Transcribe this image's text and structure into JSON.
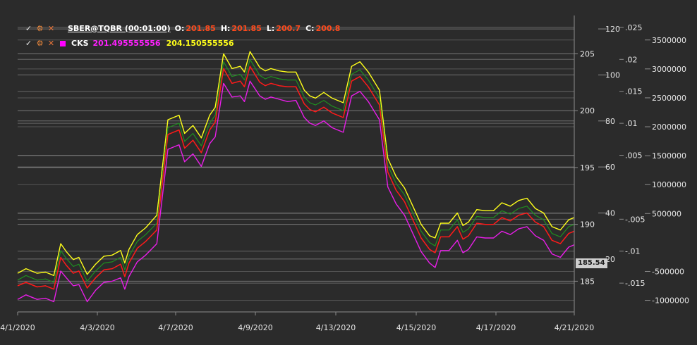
{
  "legend": {
    "instrument": "SBER@TQBR (00:01:00)",
    "o_label": "O:",
    "o_value": "201.85",
    "h_label": "H:",
    "h_value": "201.85",
    "l_label": "L:",
    "l_value": "200.7",
    "c_label": "C:",
    "c_value": "200.8",
    "indicator_name": "CKS",
    "indicator_value_1": "201.495555556",
    "indicator_value_2": "204.150555556"
  },
  "price_tag": "185.54",
  "colors": {
    "background": "#2b2b2b",
    "grid": "#8c8c8c",
    "series_price": "#ff1a1a",
    "series_low": "#e81ee8",
    "series_high": "#ffff1a",
    "series_mid": "#1f8f1f"
  },
  "chart_data": {
    "type": "line",
    "title": "",
    "x_ticks": [
      "4/1/2020",
      "4/3/2020",
      "4/7/2020",
      "4/9/2020",
      "4/13/2020",
      "4/15/2020",
      "4/17/2020",
      "4/21/2020"
    ],
    "price_axis": {
      "ticks": [
        "185",
        "190",
        "195",
        "200",
        "205"
      ],
      "range": [
        182.3,
        208
      ]
    },
    "axis_2": {
      "ticks": [
        "20",
        "40",
        "60",
        "80",
        "100",
        "120"
      ],
      "range": [
        -3,
        124
      ]
    },
    "axis_3": {
      "ticks": [
        "-.015",
        "-.01",
        "-.005",
        ".005",
        ".01",
        ".015",
        ".02",
        ".025"
      ],
      "range": [
        -0.0195,
        0.0262
      ]
    },
    "axis_4": {
      "ticks": [
        "-1000000",
        "-500000",
        "500000",
        "1000000",
        "1500000",
        "2000000",
        "2500000",
        "3000000",
        "3500000"
      ],
      "range": [
        -1200000,
        3850000
      ]
    },
    "series": [
      {
        "name": "CKS",
        "x": [
          0,
          0.3,
          0.7,
          1.0,
          1.3,
          1.55,
          1.75,
          2.0,
          2.2,
          2.5,
          2.8,
          3.1,
          3.4,
          3.7,
          3.85,
          4.0,
          4.3,
          4.6,
          5.0,
          5.4,
          5.8,
          6.0,
          6.3,
          6.6,
          6.9,
          7.1,
          7.4,
          7.7,
          8.0,
          8.15,
          8.35,
          8.7,
          8.9,
          9.1,
          9.4,
          9.7,
          10.0,
          10.3,
          10.5,
          10.7,
          11.0,
          11.3,
          11.7,
          12.0,
          12.3,
          12.6,
          13.0,
          13.3,
          13.6,
          13.9,
          14.2,
          14.5,
          14.8,
          15.0,
          15.2,
          15.5,
          15.8,
          16.0,
          16.2,
          16.5,
          16.8,
          17.1,
          17.4,
          17.7,
          18.0,
          18.3,
          18.6,
          18.9,
          19.2,
          19.5,
          19.8,
          20.0
        ],
        "values": [
          184.6,
          184.9,
          184.5,
          184.6,
          184.3,
          187.1,
          186.4,
          185.7,
          185.9,
          184.4,
          185.3,
          186.0,
          186.1,
          186.5,
          185.4,
          186.6,
          187.9,
          188.5,
          189.5,
          197.9,
          198.3,
          196.7,
          197.4,
          196.3,
          198.3,
          199.0,
          203.7,
          202.4,
          202.6,
          202.1,
          203.9,
          202.5,
          202.2,
          202.4,
          202.2,
          202.1,
          202.1,
          200.6,
          200.1,
          199.9,
          200.3,
          199.8,
          199.4,
          202.6,
          203.0,
          202.1,
          200.5,
          194.6,
          193.0,
          192.0,
          190.4,
          188.8,
          187.8,
          187.5,
          188.9,
          188.9,
          189.8,
          188.7,
          189.0,
          190.1,
          190.0,
          190.0,
          190.6,
          190.3,
          190.8,
          191.0,
          190.2,
          189.8,
          188.6,
          188.3,
          189.2,
          189.4
        ]
      },
      {
        "x": [
          0,
          0.3,
          0.7,
          1.0,
          1.3,
          1.55,
          1.75,
          2.0,
          2.2,
          2.5,
          2.8,
          3.1,
          3.4,
          3.7,
          3.85,
          4.0,
          4.3,
          4.6,
          5.0,
          5.4,
          5.8,
          6.0,
          6.3,
          6.6,
          6.9,
          7.1,
          7.4,
          7.7,
          8.0,
          8.15,
          8.35,
          8.7,
          8.9,
          9.1,
          9.4,
          9.7,
          10.0,
          10.3,
          10.5,
          10.7,
          11.0,
          11.3,
          11.7,
          12.0,
          12.3,
          12.6,
          13.0,
          13.3,
          13.6,
          13.9,
          14.2,
          14.5,
          14.8,
          15.0,
          15.2,
          15.5,
          15.8,
          16.0,
          16.2,
          16.5,
          16.8,
          17.1,
          17.4,
          17.7,
          18.0,
          18.3,
          18.6,
          18.9,
          19.2,
          19.5,
          19.8,
          20.0
        ],
        "values": [
          183.4,
          183.8,
          183.4,
          183.5,
          183.2,
          185.9,
          185.3,
          184.6,
          184.7,
          183.2,
          184.2,
          184.9,
          185.0,
          185.3,
          184.3,
          185.4,
          186.7,
          187.3,
          188.3,
          196.6,
          197.0,
          195.5,
          196.2,
          195.1,
          197.1,
          197.7,
          202.4,
          201.2,
          201.3,
          200.8,
          202.6,
          201.3,
          201.0,
          201.2,
          201.0,
          200.8,
          200.9,
          199.4,
          198.9,
          198.7,
          199.1,
          198.5,
          198.1,
          201.3,
          201.7,
          200.8,
          199.2,
          193.3,
          191.8,
          190.8,
          189.2,
          187.6,
          186.6,
          186.2,
          187.7,
          187.7,
          188.6,
          187.5,
          187.8,
          188.9,
          188.8,
          188.8,
          189.4,
          189.1,
          189.6,
          189.8,
          189.0,
          188.6,
          187.4,
          187.1,
          188.0,
          188.2
        ]
      },
      {
        "x": [
          0,
          0.3,
          0.7,
          1.0,
          1.3,
          1.55,
          1.75,
          2.0,
          2.2,
          2.5,
          2.8,
          3.1,
          3.4,
          3.7,
          3.85,
          4.0,
          4.3,
          4.6,
          5.0,
          5.4,
          5.8,
          6.0,
          6.3,
          6.6,
          6.9,
          7.1,
          7.4,
          7.7,
          8.0,
          8.15,
          8.35,
          8.7,
          8.9,
          9.1,
          9.4,
          9.7,
          10.0,
          10.3,
          10.5,
          10.7,
          11.0,
          11.3,
          11.7,
          12.0,
          12.3,
          12.6,
          13.0,
          13.3,
          13.6,
          13.9,
          14.2,
          14.5,
          14.8,
          15.0,
          15.2,
          15.5,
          15.8,
          16.0,
          16.2,
          16.5,
          16.8,
          17.1,
          17.4,
          17.7,
          18.0,
          18.3,
          18.6,
          18.9,
          19.2,
          19.5,
          19.8,
          20.0
        ],
        "values": [
          185.7,
          186.1,
          185.7,
          185.8,
          185.5,
          188.3,
          187.6,
          186.9,
          187.1,
          185.6,
          186.5,
          187.2,
          187.3,
          187.7,
          186.6,
          187.8,
          189.1,
          189.7,
          190.8,
          199.2,
          199.6,
          198.0,
          198.7,
          197.6,
          199.6,
          200.3,
          205.0,
          203.7,
          203.9,
          203.4,
          205.2,
          203.8,
          203.5,
          203.7,
          203.5,
          203.4,
          203.4,
          201.8,
          201.3,
          201.1,
          201.6,
          201.1,
          200.7,
          203.9,
          204.3,
          203.4,
          201.8,
          195.8,
          194.2,
          193.2,
          191.6,
          190.0,
          189.0,
          188.8,
          190.1,
          190.1,
          191.0,
          189.9,
          190.2,
          191.3,
          191.2,
          191.2,
          191.9,
          191.6,
          192.1,
          192.3,
          191.4,
          191.0,
          189.8,
          189.5,
          190.4,
          190.6
        ]
      },
      {
        "x": [
          0,
          0.3,
          0.7,
          1.0,
          1.3,
          1.55,
          1.75,
          2.0,
          2.2,
          2.5,
          2.8,
          3.1,
          3.4,
          3.7,
          3.85,
          4.0,
          4.3,
          4.6,
          5.0,
          5.4,
          5.8,
          6.0,
          6.3,
          6.6,
          6.9,
          7.1,
          7.4,
          7.7,
          8.0,
          8.15,
          8.35,
          8.7,
          8.9,
          9.1,
          9.4,
          9.7,
          10.0,
          10.3,
          10.5,
          10.7,
          11.0,
          11.3,
          11.7,
          12.0,
          12.3,
          12.6,
          13.0,
          13.3,
          13.6,
          13.9,
          14.2,
          14.5,
          14.8,
          15.0,
          15.2,
          15.5,
          15.8,
          16.0,
          16.2,
          16.5,
          16.8,
          17.1,
          17.4,
          17.7,
          18.0,
          18.3,
          18.6,
          18.9,
          19.2,
          19.5,
          19.8,
          20.0
        ],
        "values": [
          185.1,
          185.5,
          185.1,
          185.2,
          184.9,
          187.7,
          187.0,
          186.3,
          186.5,
          185.0,
          185.9,
          186.6,
          186.7,
          187.1,
          186.0,
          187.2,
          188.5,
          189.1,
          190.1,
          198.5,
          198.9,
          197.3,
          198.0,
          196.9,
          198.9,
          199.6,
          204.3,
          203.0,
          203.2,
          202.7,
          204.5,
          203.1,
          202.8,
          203.0,
          202.8,
          202.7,
          202.7,
          201.2,
          200.7,
          200.5,
          200.9,
          200.4,
          200.0,
          203.2,
          203.6,
          202.7,
          201.1,
          195.2,
          193.6,
          192.6,
          191.0,
          189.4,
          188.4,
          188.1,
          189.5,
          189.5,
          190.4,
          189.3,
          189.6,
          190.7,
          190.6,
          190.6,
          191.2,
          190.9,
          191.4,
          191.6,
          190.8,
          190.4,
          189.2,
          188.9,
          189.8,
          190.0
        ]
      }
    ]
  }
}
